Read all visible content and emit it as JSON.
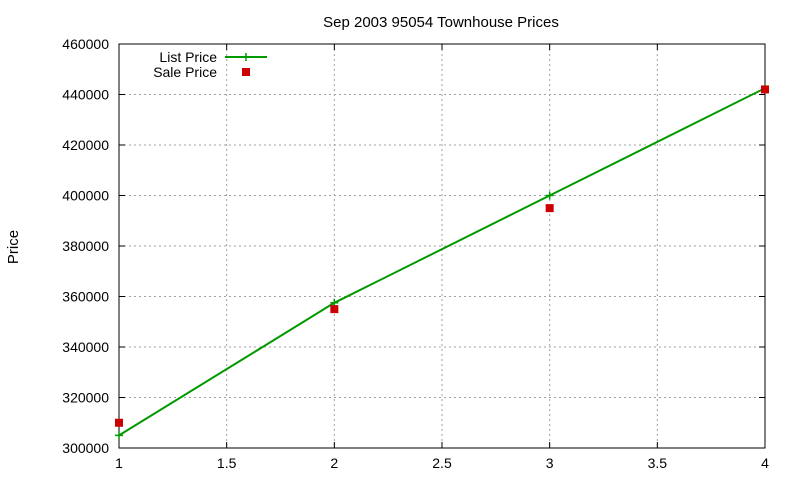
{
  "chart_data": {
    "type": "line",
    "title": "Sep 2003 95054 Townhouse Prices",
    "xlabel": "",
    "ylabel": "Price",
    "xlim": [
      1,
      4
    ],
    "ylim": [
      300000,
      460000
    ],
    "xticks": [
      "1",
      "1.5",
      "2",
      "2.5",
      "3",
      "3.5",
      "4"
    ],
    "yticks": [
      "300000",
      "320000",
      "340000",
      "360000",
      "380000",
      "400000",
      "420000",
      "440000",
      "460000"
    ],
    "grid": true,
    "legend_position": "top-left",
    "series": [
      {
        "name": "List Price",
        "style": "line+cross",
        "color": "#009900",
        "x": [
          1,
          2,
          3,
          4
        ],
        "y": [
          305000,
          357500,
          400000,
          442500
        ]
      },
      {
        "name": "Sale Price",
        "style": "square",
        "color": "#cc0000",
        "x": [
          1,
          2,
          3,
          4
        ],
        "y": [
          310000,
          355000,
          395000,
          442000
        ]
      }
    ]
  }
}
